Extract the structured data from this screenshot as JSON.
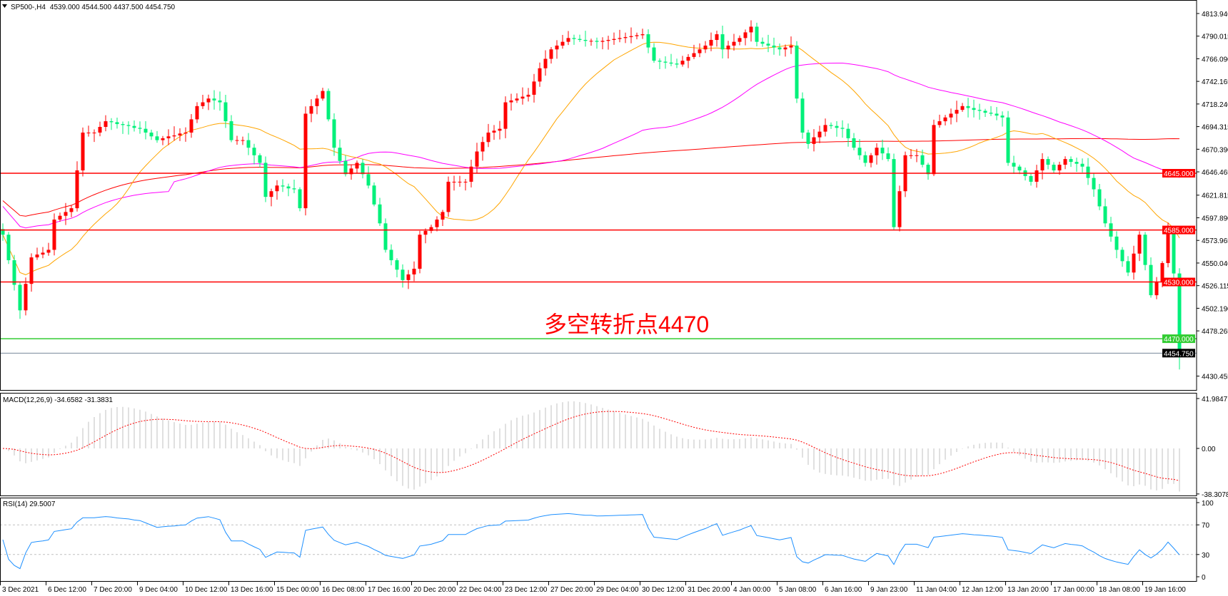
{
  "header": {
    "symbol": "SP500-,H4",
    "ohlc": "4539.000 4544.500 4437.500 4454.750",
    "macd_label": "MACD(12,26,9) -34.6582 -31.3831",
    "rsi_label": "RSI(14) 29.5007",
    "annotation": "多空转折点4470"
  },
  "chart_data": {
    "type": "candlestick",
    "timeframe": "H4",
    "close": [
      4580,
      4553,
      4527,
      4500,
      4528,
      4556,
      4559,
      4561,
      4564,
      4596,
      4600,
      4604,
      4608,
      4648,
      4688,
      4688,
      4688,
      4694,
      4700,
      4699,
      4697,
      4696,
      4695,
      4693,
      4692,
      4688,
      4684,
      4680,
      4682,
      4684,
      4685,
      4687,
      4688,
      4702,
      4716,
      4720,
      4724,
      4722,
      4720,
      4700,
      4680,
      4680,
      4680,
      4672,
      4664,
      4656,
      4620,
      4626,
      4632,
      4631,
      4629,
      4628,
      4608,
      4708,
      4716,
      4724,
      4732,
      4702,
      4672,
      4658,
      4644,
      4650,
      4656,
      4644,
      4632,
      4612,
      4592,
      4564,
      4553,
      4543,
      4532,
      4538,
      4544,
      4580,
      4584,
      4588,
      4596,
      4604,
      4636,
      4636,
      4636,
      4636,
      4652,
      4668,
      4678,
      4688,
      4690,
      4692,
      4720,
      4722,
      4724,
      4726,
      4728,
      4742,
      4756,
      4766,
      4776,
      4780,
      4784,
      4788,
      4787,
      4786,
      4785,
      4785,
      4784,
      4785,
      4786,
      4787,
      4788,
      4789,
      4790,
      4791,
      4792,
      4778,
      4764,
      4763,
      4762,
      4761,
      4760,
      4764,
      4768,
      4772,
      4776,
      4780,
      4786,
      4792,
      4776,
      4780,
      4784,
      4788,
      4794,
      4800,
      4784,
      4782,
      4780,
      4778,
      4776,
      4778,
      4780,
      4724,
      4688,
      4676,
      4683,
      4689,
      4696,
      4695,
      4693,
      4692,
      4682,
      4672,
      4664,
      4656,
      4664,
      4672,
      4666,
      4660,
      4588,
      4626,
      4664,
      4664,
      4664,
      4654,
      4644,
      4696,
      4700,
      4704,
      4708,
      4712,
      4716,
      4714,
      4712,
      4711,
      4709,
      4708,
      4706,
      4704,
      4656,
      4652,
      4648,
      4642,
      4636,
      4648,
      4660,
      4654,
      4648,
      4654,
      4660,
      4657,
      4655,
      4652,
      4640,
      4628,
      4610,
      4592,
      4578,
      4564,
      4552,
      4540,
      4560,
      4580,
      4548,
      4516,
      4530,
      4550,
      4585,
      4539,
      4454.75
    ],
    "last_bar": {
      "open": 4539.0,
      "high": 4544.5,
      "low": 4437.5,
      "close": 4454.75
    },
    "price_axis": [
      "4813.940",
      "4790.015",
      "4766.090",
      "4742.165",
      "4718.240",
      "4694.315",
      "4670.390",
      "4646.465",
      "4621.815",
      "4597.890",
      "4573.965",
      "4550.040",
      "4526.115",
      "4502.190",
      "4478.265",
      "4430.455"
    ],
    "time_axis": [
      "3 Dec 2021",
      "6 Dec 12:00",
      "7 Dec 20:00",
      "9 Dec 04:00",
      "10 Dec 12:00",
      "13 Dec 16:00",
      "15 Dec 00:00",
      "16 Dec 08:00",
      "17 Dec 16:00",
      "20 Dec 20:00",
      "22 Dec 04:00",
      "23 Dec 12:00",
      "27 Dec 20:00",
      "29 Dec 04:00",
      "30 Dec 12:00",
      "31 Dec 20:00",
      "4 Jan 00:00",
      "5 Jan 08:00",
      "6 Jan 16:00",
      "9 Jan 23:00",
      "11 Jan 04:00",
      "12 Jan 12:00",
      "13 Jan 20:00",
      "17 Jan 00:00",
      "18 Jan 08:00",
      "19 Jan 16:00"
    ],
    "levels": [
      {
        "price": 4645.0,
        "label": "4645.000",
        "color": "#ff0000"
      },
      {
        "price": 4585.0,
        "label": "4585.000",
        "color": "#ff0000"
      },
      {
        "price": 4530.0,
        "label": "4530.000",
        "color": "#ff0000"
      },
      {
        "price": 4470.0,
        "label": "4470.000",
        "color": "#33cc33"
      },
      {
        "price": 4454.75,
        "label": "4454.750",
        "color": "#000000"
      }
    ],
    "macd": {
      "params": "12,26,9",
      "main": -34.6582,
      "signal": -31.3831,
      "axis": [
        "41.9847",
        "0.00",
        "-38.3078"
      ],
      "ylim": [
        -38.3078,
        41.9847
      ]
    },
    "rsi": {
      "period": 14,
      "value": 29.5007,
      "axis": [
        "100",
        "70",
        "30",
        "0"
      ],
      "levels": [
        70,
        30
      ],
      "ylim": [
        0,
        100
      ]
    },
    "colors": {
      "bull": "#ff0000",
      "bear": "#00f07a",
      "ma_fast": "#ffa500",
      "ma_mid": "#ff00ff",
      "ma_slow": "#ff0000",
      "macd_hist": "#c0c0c0",
      "macd_signal": "#ff0000",
      "rsi_line": "#1e90ff"
    }
  }
}
